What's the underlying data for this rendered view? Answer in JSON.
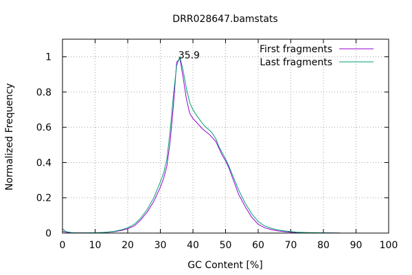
{
  "chart_data": {
    "type": "line",
    "title": "DRR028647.bamstats",
    "xlabel": "GC Content [%]",
    "ylabel": "Normalized Frequency",
    "xlim": [
      0,
      100
    ],
    "ylim": [
      0,
      1.1
    ],
    "xticks": [
      "0",
      "10",
      "20",
      "30",
      "40",
      "50",
      "60",
      "70",
      "80",
      "90",
      "100"
    ],
    "yticks": [
      "0",
      "0.2",
      "0.4",
      "0.6",
      "0.8",
      "1"
    ],
    "grid": true,
    "legend_position": "top-right",
    "annotations": [
      {
        "text": "35.9",
        "x": 38.8,
        "y": 0.99
      }
    ],
    "colors": {
      "first": "#9400d3",
      "last": "#009e73"
    },
    "series": [
      {
        "name": "First fragments",
        "color": "#9400d3",
        "points": [
          [
            0,
            0.01
          ],
          [
            2,
            0.002
          ],
          [
            5,
            0.001
          ],
          [
            8,
            0.001
          ],
          [
            10,
            0.002
          ],
          [
            12,
            0.003
          ],
          [
            14,
            0.005
          ],
          [
            16,
            0.008
          ],
          [
            18,
            0.015
          ],
          [
            20,
            0.025
          ],
          [
            22,
            0.04
          ],
          [
            24,
            0.075
          ],
          [
            26,
            0.12
          ],
          [
            28,
            0.18
          ],
          [
            30,
            0.26
          ],
          [
            31,
            0.31
          ],
          [
            32,
            0.38
          ],
          [
            33,
            0.52
          ],
          [
            34,
            0.72
          ],
          [
            35,
            0.97
          ],
          [
            36,
            0.99
          ],
          [
            37,
            0.88
          ],
          [
            38,
            0.76
          ],
          [
            39,
            0.68
          ],
          [
            40,
            0.65
          ],
          [
            41,
            0.63
          ],
          [
            42,
            0.61
          ],
          [
            43,
            0.59
          ],
          [
            44,
            0.575
          ],
          [
            45,
            0.56
          ],
          [
            46,
            0.54
          ],
          [
            47,
            0.52
          ],
          [
            48,
            0.48
          ],
          [
            49,
            0.44
          ],
          [
            50,
            0.41
          ],
          [
            51,
            0.37
          ],
          [
            52,
            0.32
          ],
          [
            53,
            0.27
          ],
          [
            54,
            0.22
          ],
          [
            56,
            0.15
          ],
          [
            58,
            0.09
          ],
          [
            60,
            0.05
          ],
          [
            62,
            0.03
          ],
          [
            64,
            0.02
          ],
          [
            66,
            0.012
          ],
          [
            68,
            0.008
          ],
          [
            70,
            0.005
          ],
          [
            72,
            0.003
          ],
          [
            75,
            0.002
          ],
          [
            80,
            0.001
          ],
          [
            85,
            0.0005
          ]
        ]
      },
      {
        "name": "Last fragments",
        "color": "#009e73",
        "points": [
          [
            0,
            0.025
          ],
          [
            1,
            0.008
          ],
          [
            3,
            0.002
          ],
          [
            6,
            0.001
          ],
          [
            9,
            0.002
          ],
          [
            12,
            0.003
          ],
          [
            14,
            0.006
          ],
          [
            16,
            0.01
          ],
          [
            18,
            0.018
          ],
          [
            20,
            0.03
          ],
          [
            22,
            0.05
          ],
          [
            24,
            0.085
          ],
          [
            26,
            0.135
          ],
          [
            28,
            0.2
          ],
          [
            30,
            0.29
          ],
          [
            31,
            0.34
          ],
          [
            32,
            0.42
          ],
          [
            33,
            0.58
          ],
          [
            34,
            0.78
          ],
          [
            35,
            0.95
          ],
          [
            36,
            1.0
          ],
          [
            37,
            0.92
          ],
          [
            38,
            0.82
          ],
          [
            39,
            0.74
          ],
          [
            40,
            0.7
          ],
          [
            41,
            0.67
          ],
          [
            42,
            0.645
          ],
          [
            43,
            0.62
          ],
          [
            44,
            0.6
          ],
          [
            45,
            0.585
          ],
          [
            46,
            0.565
          ],
          [
            47,
            0.535
          ],
          [
            48,
            0.49
          ],
          [
            49,
            0.455
          ],
          [
            50,
            0.42
          ],
          [
            51,
            0.38
          ],
          [
            52,
            0.335
          ],
          [
            53,
            0.29
          ],
          [
            54,
            0.245
          ],
          [
            56,
            0.17
          ],
          [
            58,
            0.11
          ],
          [
            60,
            0.065
          ],
          [
            62,
            0.04
          ],
          [
            64,
            0.027
          ],
          [
            66,
            0.018
          ],
          [
            68,
            0.012
          ],
          [
            70,
            0.008
          ],
          [
            72,
            0.005
          ],
          [
            75,
            0.003
          ],
          [
            80,
            0.0015
          ],
          [
            85,
            0.0005
          ]
        ]
      }
    ]
  }
}
